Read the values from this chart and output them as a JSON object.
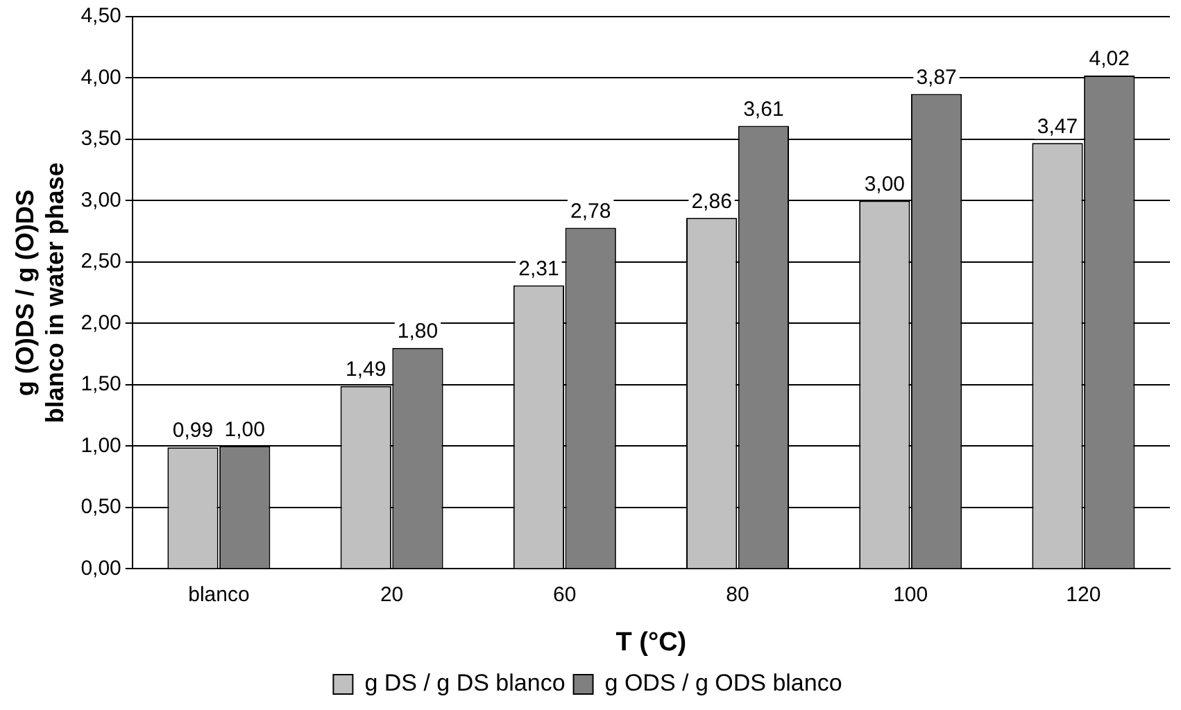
{
  "chart_data": {
    "type": "bar",
    "xlabel": "T (°C)",
    "ylabel": "g (O)DS / g (O)DS blanco in water phase",
    "categories": [
      "blanco",
      "20",
      "60",
      "80",
      "100",
      "120"
    ],
    "series": [
      {
        "name": "g DS / g DS blanco",
        "color": "#c0c0c0",
        "values": [
          0.99,
          1.49,
          2.31,
          2.86,
          3.0,
          3.47
        ],
        "value_labels": [
          "0,99",
          "1,49",
          "2,31",
          "2,86",
          "3,00",
          "3,47"
        ]
      },
      {
        "name": "g ODS / g ODS blanco",
        "color": "#808080",
        "values": [
          1.0,
          1.8,
          2.78,
          3.61,
          3.87,
          4.02
        ],
        "value_labels": [
          "1,00",
          "1,80",
          "2,78",
          "3,61",
          "3,87",
          "4,02"
        ]
      }
    ],
    "ylim": [
      0,
      4.5
    ],
    "yticks": [
      {
        "value": 0,
        "label": "0,00"
      },
      {
        "value": 0.5,
        "label": "0,50"
      },
      {
        "value": 1,
        "label": "1,00"
      },
      {
        "value": 1.5,
        "label": "1,50"
      },
      {
        "value": 2,
        "label": "2,00"
      },
      {
        "value": 2.5,
        "label": "2,50"
      },
      {
        "value": 3,
        "label": "3,00"
      },
      {
        "value": 3.5,
        "label": "3,50"
      },
      {
        "value": 4,
        "label": "4,00"
      },
      {
        "value": 4.5,
        "label": "4,50"
      }
    ],
    "grid": "y",
    "legend": "bottom"
  }
}
